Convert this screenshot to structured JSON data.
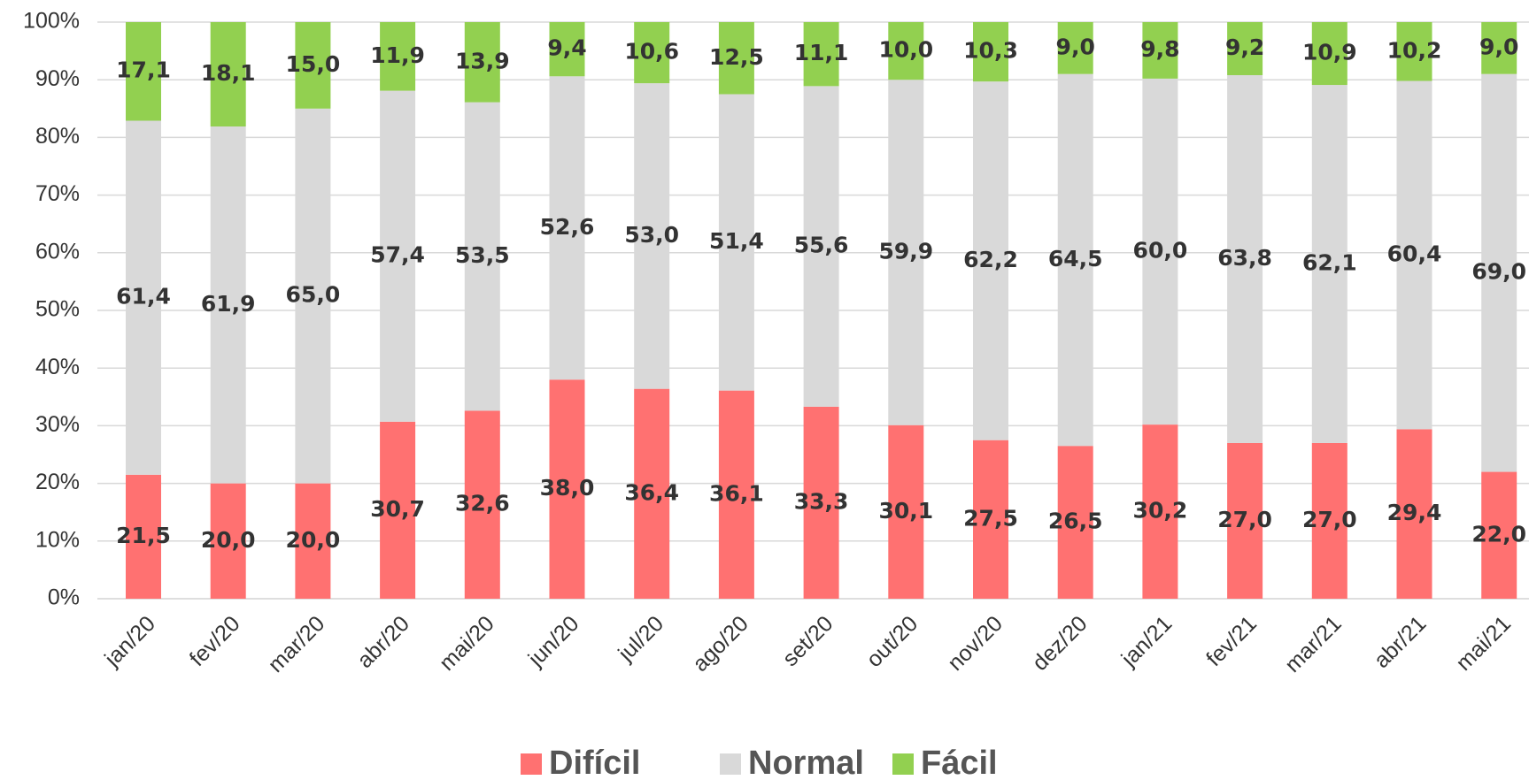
{
  "chart_data": {
    "type": "stacked_bar",
    "categories": [
      "jan/20",
      "fev/20",
      "mar/20",
      "abr/20",
      "mai/20",
      "jun/20",
      "jul/20",
      "ago/20",
      "set/20",
      "out/20",
      "nov/20",
      "dez/20",
      "jan/21",
      "fev/21",
      "mar/21",
      "abr/21",
      "mai/21"
    ],
    "series": [
      {
        "name": "Difícil",
        "color": "#ff7171",
        "values": [
          21.5,
          20.0,
          20.0,
          30.7,
          32.6,
          38.0,
          36.4,
          36.1,
          33.3,
          30.1,
          27.5,
          26.5,
          30.2,
          27.0,
          27.0,
          29.4,
          22.0
        ],
        "value_labels": [
          "21,5",
          "20,0",
          "20,0",
          "30,7",
          "32,6",
          "38,0",
          "36,4",
          "36,1",
          "33,3",
          "30,1",
          "27,5",
          "26,5",
          "30,2",
          "27,0",
          "27,0",
          "29,4",
          "22,0"
        ]
      },
      {
        "name": "Normal",
        "color": "#d9d9d9",
        "values": [
          61.4,
          61.9,
          65.0,
          57.4,
          53.5,
          52.6,
          53.0,
          51.4,
          55.6,
          59.9,
          62.2,
          64.5,
          60.0,
          63.8,
          62.1,
          60.4,
          69.0
        ],
        "value_labels": [
          "61,4",
          "61,9",
          "65,0",
          "57,4",
          "53,5",
          "52,6",
          "53,0",
          "51,4",
          "55,6",
          "59,9",
          "62,2",
          "64,5",
          "60,0",
          "63,8",
          "62,1",
          "60,4",
          "69,0"
        ]
      },
      {
        "name": "Fácil",
        "color": "#92d050",
        "values": [
          17.1,
          18.1,
          15.0,
          11.9,
          13.9,
          9.4,
          10.6,
          12.5,
          11.1,
          10.0,
          10.3,
          9.0,
          9.8,
          9.2,
          10.9,
          10.2,
          9.0
        ],
        "value_labels": [
          "17,1",
          "18,1",
          "15,0",
          "11,9",
          "13,9",
          "9,4",
          "10,6",
          "12,5",
          "11,1",
          "10,0",
          "10,3",
          "9,0",
          "9,8",
          "9,2",
          "10,9",
          "10,2",
          "9,0"
        ]
      }
    ],
    "ylim": [
      0,
      100
    ],
    "yticks": [
      {
        "value": 0,
        "label": "0%"
      },
      {
        "value": 10,
        "label": "10%"
      },
      {
        "value": 20,
        "label": "20%"
      },
      {
        "value": 30,
        "label": "30%"
      },
      {
        "value": 40,
        "label": "40%"
      },
      {
        "value": 50,
        "label": "50%"
      },
      {
        "value": 60,
        "label": "60%"
      },
      {
        "value": 70,
        "label": "70%"
      },
      {
        "value": 80,
        "label": "80%"
      },
      {
        "value": 90,
        "label": "90%"
      },
      {
        "value": 100,
        "label": "100%"
      }
    ],
    "grid": true,
    "legend": "bottom"
  }
}
